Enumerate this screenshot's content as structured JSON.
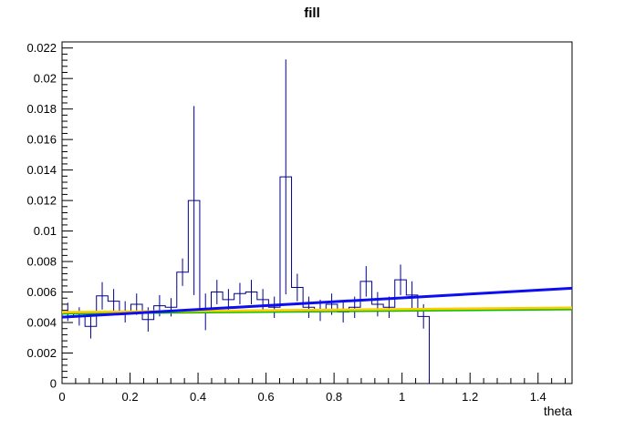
{
  "window": {
    "background": "#ffffff"
  },
  "chart_data": {
    "type": "bar",
    "subtype": "root-histogram-with-fit-functions",
    "title": "fill",
    "xlabel": "theta",
    "ylabel": "",
    "xlim": [
      0,
      1.5
    ],
    "ylim": [
      0,
      0.0224
    ],
    "grid": false,
    "legend": null,
    "x_ticks": {
      "values": [
        0,
        0.2,
        0.4,
        0.6,
        0.8,
        1.0,
        1.2,
        1.4
      ],
      "labels": [
        "0",
        "0.2",
        "0.4",
        "0.6",
        "0.8",
        "1",
        "1.2",
        "1.4"
      ],
      "minor_step": 0.04
    },
    "y_ticks": {
      "values": [
        0,
        0.002,
        0.004,
        0.006,
        0.008,
        0.01,
        0.012,
        0.014,
        0.016,
        0.018,
        0.02,
        0.022
      ],
      "labels": [
        "0",
        "0.002",
        "0.004",
        "0.006",
        "0.008",
        "0.01",
        "0.012",
        "0.014",
        "0.016",
        "0.018",
        "0.02",
        "0.022"
      ],
      "minor_step": 0.0004
    },
    "histogram": {
      "bin_start": 0,
      "bin_width": 0.03375,
      "end_drop_to_zero": true,
      "values": [
        0.0047,
        0.0044,
        0.00375,
        0.00575,
        0.0054,
        0.0047,
        0.0052,
        0.0042,
        0.0051,
        0.005,
        0.0073,
        0.012,
        0.0047,
        0.006,
        0.0055,
        0.0059,
        0.006,
        0.0055,
        0.005,
        0.01355,
        0.0063,
        0.005,
        0.0048,
        0.0052,
        0.0047,
        0.005,
        0.0067,
        0.0052,
        0.005,
        0.0068,
        0.0058,
        0.0044
      ],
      "errors": [
        0.0006,
        0.0006,
        0.0008,
        0.0009,
        0.0008,
        0.0007,
        0.0007,
        0.0008,
        0.0007,
        0.0006,
        0.0009,
        0.0062,
        0.0012,
        0.0008,
        0.0007,
        0.0007,
        0.0008,
        0.0007,
        0.0007,
        0.0077,
        0.0009,
        0.0007,
        0.0007,
        0.0007,
        0.0007,
        0.0007,
        0.001,
        0.0008,
        0.0007,
        0.001,
        0.0009,
        0.0008
      ]
    },
    "fit_lines": [
      {
        "name": "fit-line-green",
        "color": "#00bf00",
        "x0": 0,
        "y0": 0.0046,
        "x1": 1.5,
        "y1": 0.00488,
        "width": 2.6
      },
      {
        "name": "fit-line-yellow",
        "color": "#ffcc00",
        "x0": 0,
        "y0": 0.00468,
        "x1": 1.5,
        "y1": 0.00497,
        "width": 2.6
      },
      {
        "name": "fit-line-blue",
        "color": "#0d0df2",
        "x0": 0,
        "y0": 0.00435,
        "x1": 1.5,
        "y1": 0.00625,
        "width": 3
      }
    ],
    "colors": {
      "histogram": "#00008b",
      "frame": "#000000",
      "text": "#000000",
      "background": "#ffffff"
    }
  }
}
